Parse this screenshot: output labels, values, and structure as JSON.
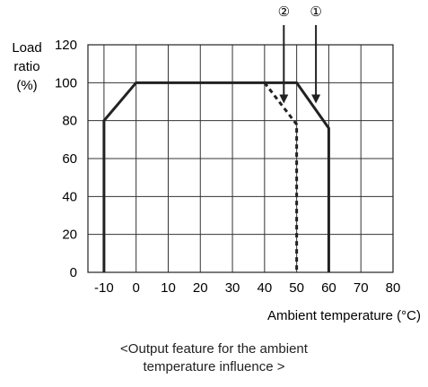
{
  "chart_data": {
    "type": "line",
    "ylabel_lines": [
      "Load",
      "ratio",
      "(%)"
    ],
    "xlabel": "Ambient temperature (°C)",
    "xlim": [
      -15,
      80
    ],
    "ylim": [
      0,
      120
    ],
    "x_ticks": [
      -10,
      0,
      10,
      20,
      30,
      40,
      50,
      60,
      70,
      80
    ],
    "y_ticks": [
      0,
      20,
      40,
      60,
      80,
      100,
      120
    ],
    "grid": true,
    "series": [
      {
        "marker": "①",
        "style": "solid",
        "points": [
          [
            -10,
            0
          ],
          [
            -10,
            80
          ],
          [
            0,
            100
          ],
          [
            50,
            100
          ],
          [
            60,
            76
          ],
          [
            60,
            0
          ]
        ]
      },
      {
        "marker": "②",
        "style": "dashed",
        "points": [
          [
            40,
            100
          ],
          [
            50,
            78
          ],
          [
            50,
            0
          ]
        ]
      }
    ],
    "annotations": [
      {
        "label": "②",
        "arrow_from": [
          46,
          115
        ],
        "arrow_to": [
          46,
          90
        ]
      },
      {
        "label": "①",
        "arrow_from": [
          56,
          115
        ],
        "arrow_to": [
          56,
          90
        ]
      }
    ]
  },
  "caption": {
    "line1": "<Output feature for the ambient",
    "line2": "temperature influence >"
  }
}
